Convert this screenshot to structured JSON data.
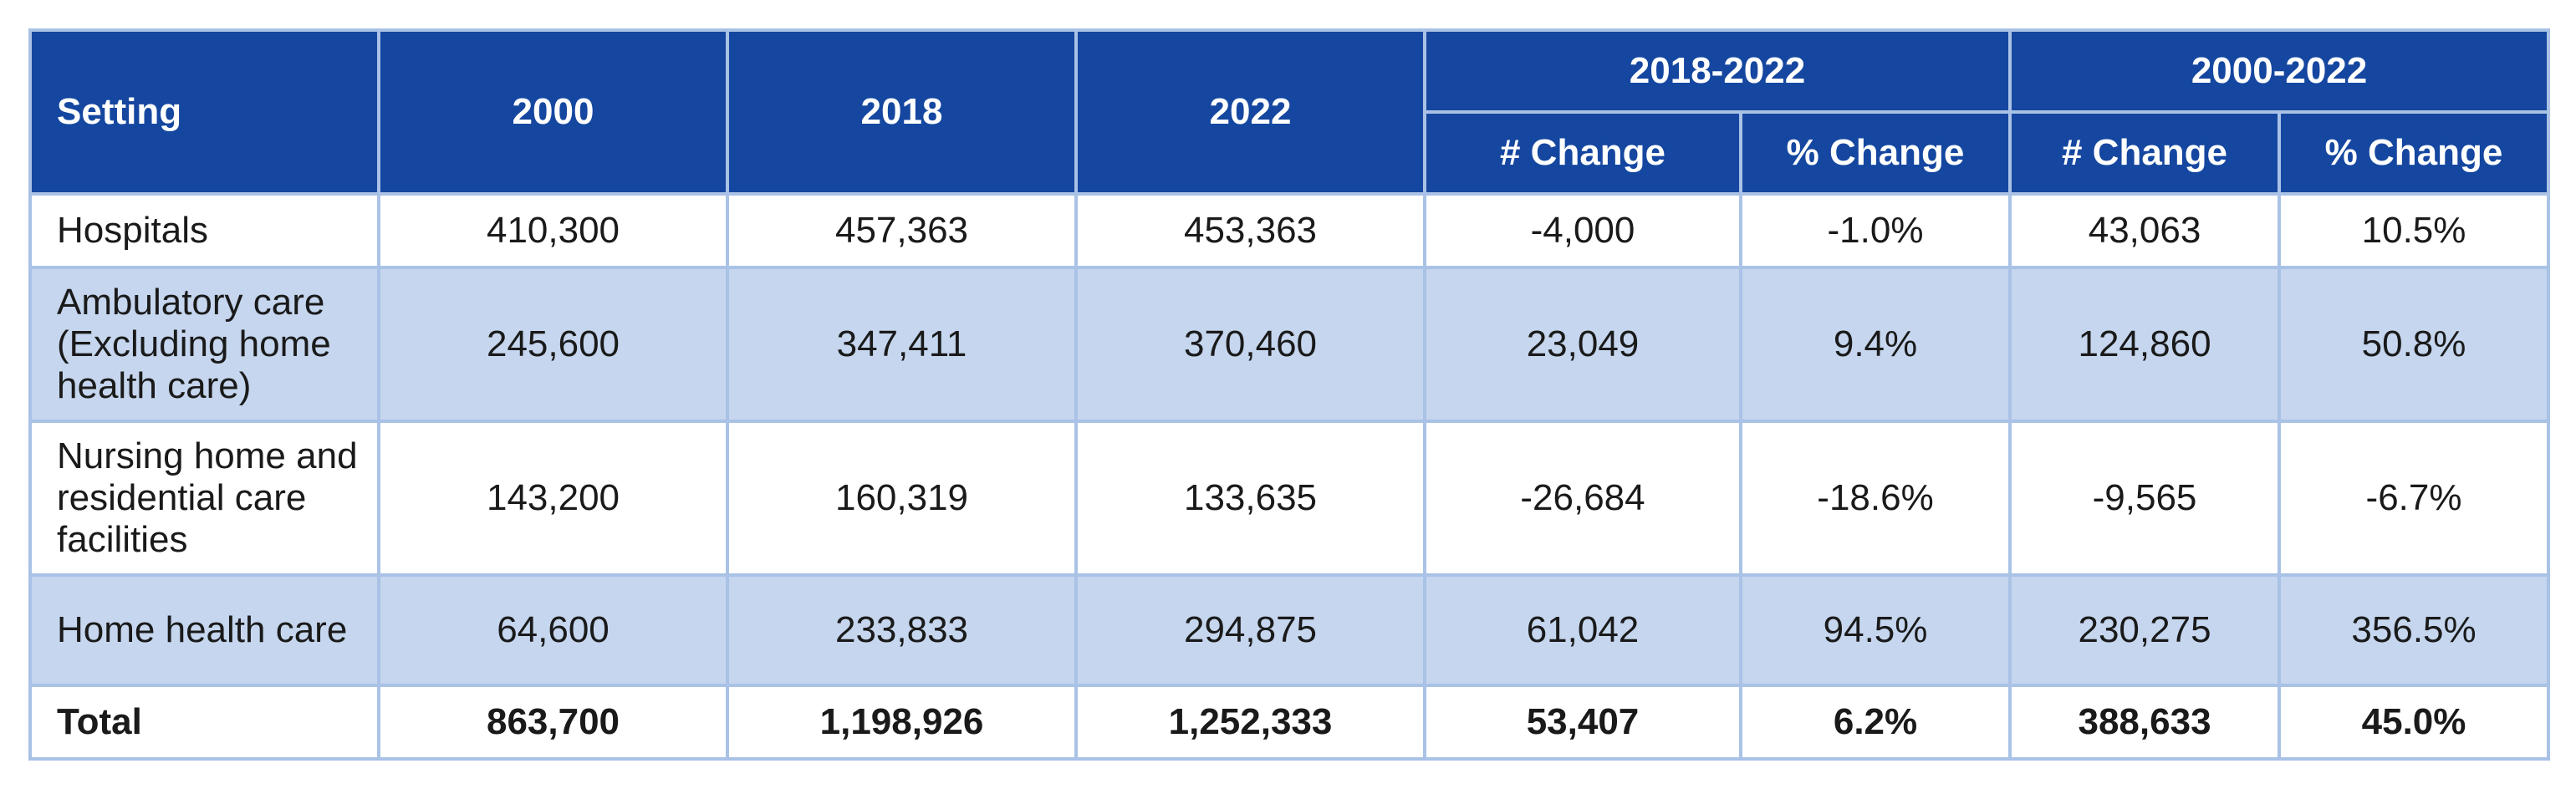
{
  "header": {
    "setting": "Setting",
    "y2000": "2000",
    "y2018": "2018",
    "y2022": "2022",
    "group1": "2018-2022",
    "group2": "2000-2022",
    "num_change": "# Change",
    "pct_change": "% Change"
  },
  "rows": [
    {
      "setting": "Hospitals",
      "y2000": "410,300",
      "y2018": "457,363",
      "y2022": "453,363",
      "ch1_num": "-4,000",
      "ch1_pct": "-1.0%",
      "ch2_num": "43,063",
      "ch2_pct": "10.5%"
    },
    {
      "setting": "Ambulatory care (Excluding home health care)",
      "y2000": "245,600",
      "y2018": "347,411",
      "y2022": "370,460",
      "ch1_num": "23,049",
      "ch1_pct": "9.4%",
      "ch2_num": "124,860",
      "ch2_pct": "50.8%"
    },
    {
      "setting": "Nursing home and residential care facilities",
      "y2000": "143,200",
      "y2018": "160,319",
      "y2022": "133,635",
      "ch1_num": "-26,684",
      "ch1_pct": "-18.6%",
      "ch2_num": "-9,565",
      "ch2_pct": "-6.7%"
    },
    {
      "setting": "Home health care",
      "y2000": "64,600",
      "y2018": "233,833",
      "y2022": "294,875",
      "ch1_num": "61,042",
      "ch1_pct": "94.5%",
      "ch2_num": "230,275",
      "ch2_pct": "356.5%"
    }
  ],
  "total": {
    "setting": "Total",
    "y2000": "863,700",
    "y2018": "1,198,926",
    "y2022": "1,252,333",
    "ch1_num": "53,407",
    "ch1_pct": "6.2%",
    "ch2_num": "388,633",
    "ch2_pct": "45.0%"
  },
  "colors": {
    "header_bg": "#1547a0",
    "shaded_row_bg": "#c5d6ee",
    "grid_line": "#a9c2e6"
  }
}
